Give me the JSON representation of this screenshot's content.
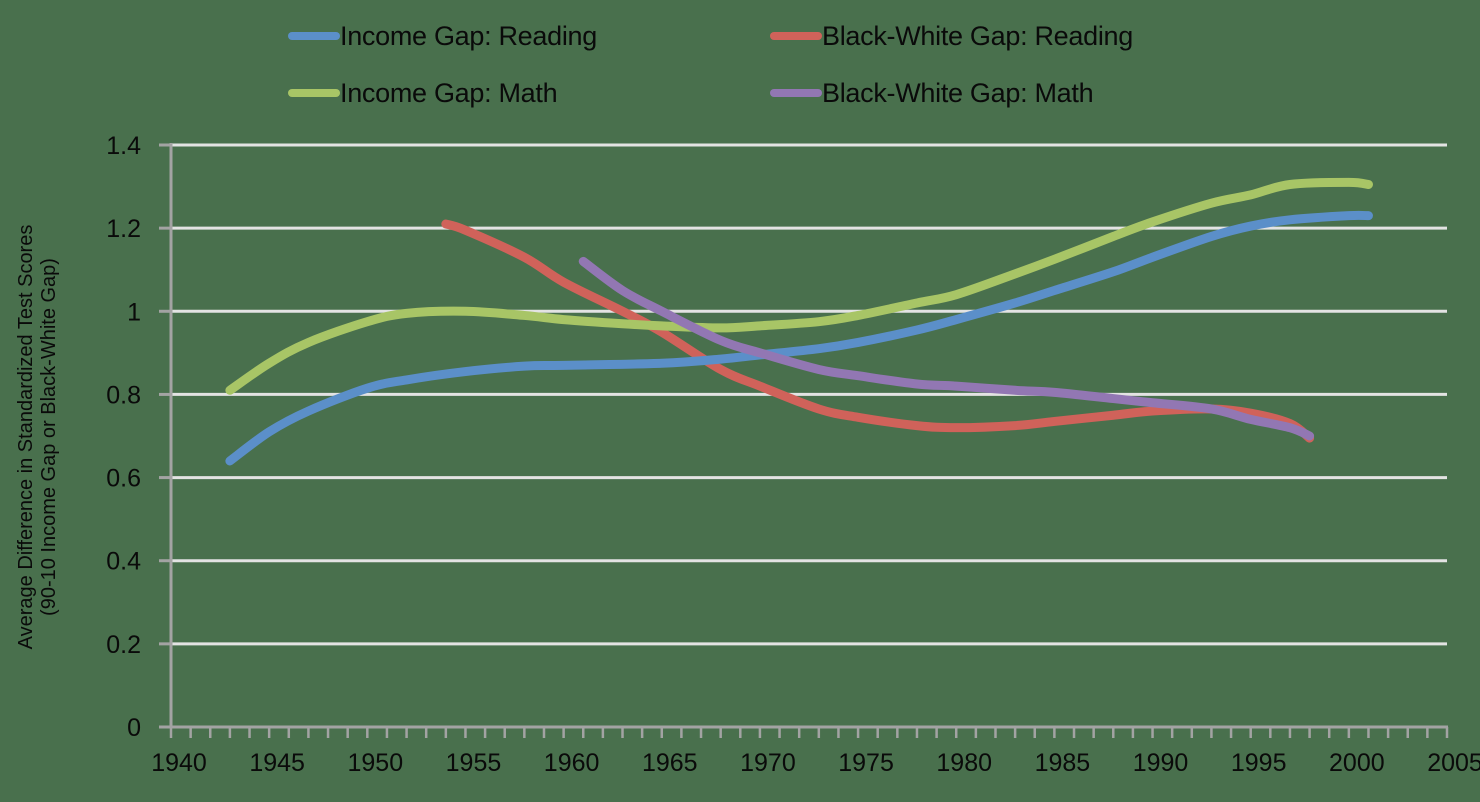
{
  "chart_data": {
    "type": "line",
    "title": "",
    "xlabel": "",
    "ylabel": "Average Difference in Standardized Test Scores (90-10 Income Gap or Black-White Gap)",
    "ylabel_lines": [
      "Average Difference in Standardized Test Scores",
      "(90-10 Income Gap or Black-White Gap)"
    ],
    "xlim": [
      1940,
      2005
    ],
    "ylim": [
      0,
      1.4
    ],
    "x_ticks": [
      1940,
      1945,
      1950,
      1955,
      1960,
      1965,
      1970,
      1975,
      1980,
      1985,
      1990,
      1995,
      2000,
      2005
    ],
    "y_ticks": [
      0,
      0.2,
      0.4,
      0.6,
      0.8,
      1,
      1.2,
      1.4
    ],
    "y_tick_labels": [
      "0",
      "0.2",
      "0.4",
      "0.6",
      "0.8",
      "1",
      "1.2",
      "1.4"
    ],
    "grid": "horizontal",
    "legend_position": "top",
    "series": [
      {
        "name": "Income Gap: Reading",
        "color": "#5b8fc9",
        "x": [
          1943,
          1945,
          1947,
          1950,
          1952,
          1955,
          1958,
          1960,
          1965,
          1968,
          1970,
          1973,
          1975,
          1978,
          1980,
          1983,
          1985,
          1988,
          1990,
          1993,
          1995,
          1997,
          2000,
          2001
        ],
        "values": [
          0.64,
          0.71,
          0.76,
          0.815,
          0.835,
          0.855,
          0.868,
          0.87,
          0.875,
          0.885,
          0.895,
          0.91,
          0.925,
          0.955,
          0.98,
          1.02,
          1.05,
          1.095,
          1.13,
          1.18,
          1.205,
          1.22,
          1.23,
          1.23
        ]
      },
      {
        "name": "Income Gap: Math",
        "color": "#a8c566",
        "x": [
          1943,
          1945,
          1947,
          1950,
          1952,
          1955,
          1958,
          1960,
          1963,
          1965,
          1968,
          1970,
          1973,
          1975,
          1978,
          1980,
          1983,
          1985,
          1988,
          1990,
          1993,
          1995,
          1997,
          2000,
          2001
        ],
        "values": [
          0.81,
          0.875,
          0.925,
          0.975,
          0.995,
          1.0,
          0.99,
          0.98,
          0.97,
          0.965,
          0.96,
          0.965,
          0.975,
          0.99,
          1.02,
          1.04,
          1.09,
          1.125,
          1.18,
          1.215,
          1.26,
          1.28,
          1.305,
          1.31,
          1.305
        ]
      },
      {
        "name": "Black-White Gap: Reading",
        "color": "#d0625a",
        "x": [
          1954,
          1955,
          1958,
          1960,
          1963,
          1965,
          1968,
          1970,
          1973,
          1975,
          1978,
          1980,
          1983,
          1985,
          1988,
          1990,
          1993,
          1995,
          1997,
          1998
        ],
        "values": [
          1.21,
          1.195,
          1.13,
          1.07,
          1.0,
          0.95,
          0.86,
          0.82,
          0.765,
          0.745,
          0.725,
          0.72,
          0.725,
          0.735,
          0.75,
          0.76,
          0.765,
          0.755,
          0.73,
          0.695
        ]
      },
      {
        "name": "Black-White Gap: Math",
        "color": "#9277b3",
        "x": [
          1961,
          1963,
          1965,
          1968,
          1970,
          1973,
          1975,
          1978,
          1980,
          1983,
          1985,
          1988,
          1990,
          1993,
          1995,
          1997,
          1998
        ],
        "values": [
          1.12,
          1.05,
          1.0,
          0.93,
          0.9,
          0.86,
          0.845,
          0.825,
          0.82,
          0.81,
          0.805,
          0.79,
          0.78,
          0.765,
          0.74,
          0.72,
          0.7
        ]
      }
    ]
  },
  "legend": {
    "items": [
      {
        "label": "Income Gap: Reading",
        "color": "#5b8fc9"
      },
      {
        "label": "Black-White Gap: Reading",
        "color": "#d0625a"
      },
      {
        "label": "Income Gap: Math",
        "color": "#a8c566"
      },
      {
        "label": "Black-White Gap: Math",
        "color": "#9277b3"
      }
    ]
  },
  "colors": {
    "background": "#49704d",
    "gridline": "#e3e3e3",
    "axis": "#a3a3a3"
  }
}
